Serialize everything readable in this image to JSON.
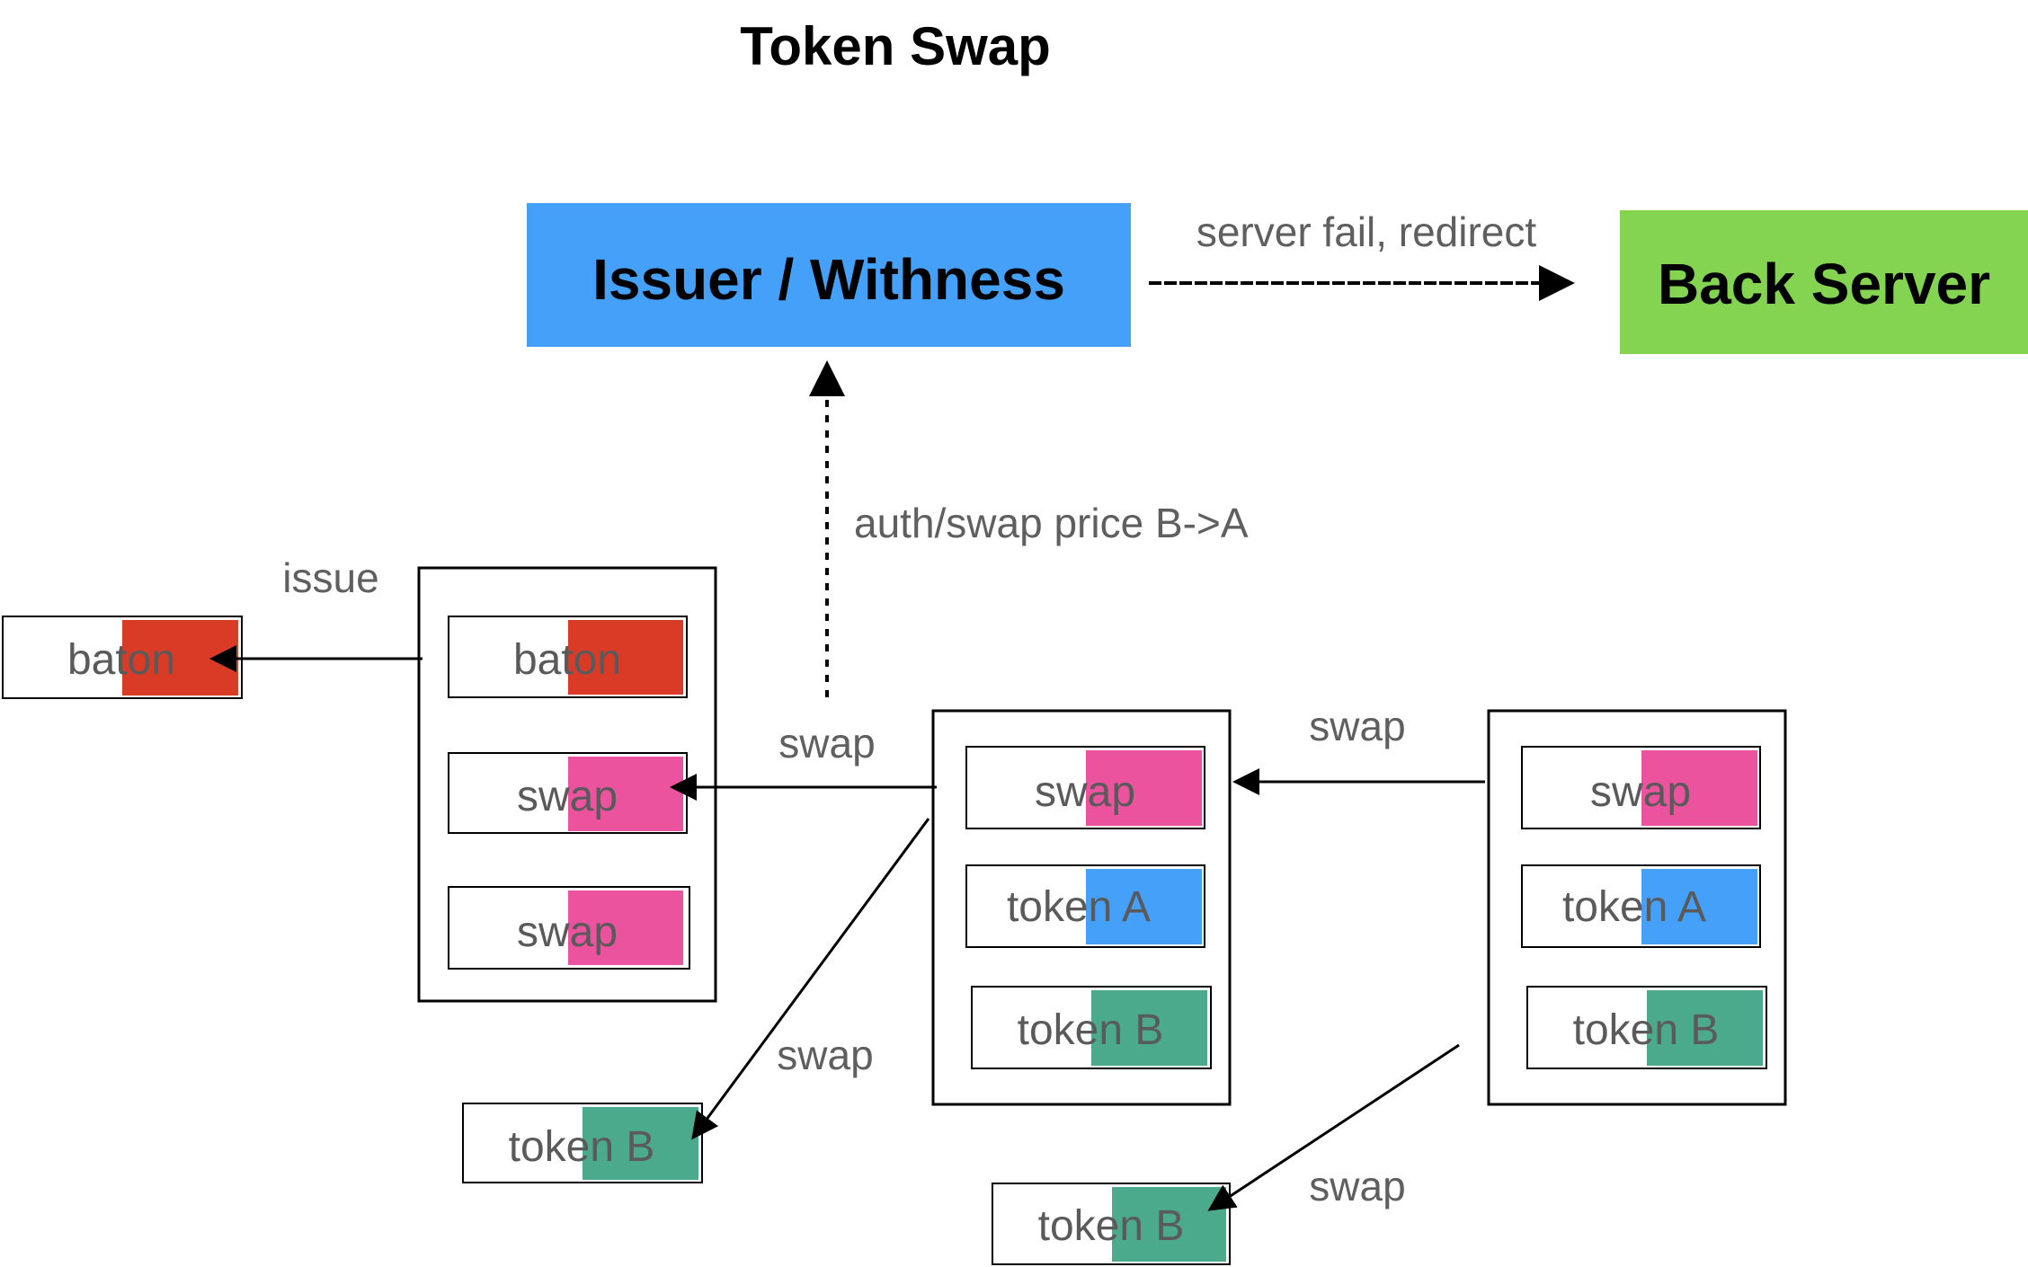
{
  "title": "Token Swap",
  "issuer": {
    "label": "Issuer / Withness",
    "color": "#45a0fa"
  },
  "back_server": {
    "label": "Back Server",
    "color": "#84d451"
  },
  "labels": {
    "server_fail": "server fail, redirect",
    "auth_swap": "auth/swap price B->A",
    "issue": "issue",
    "swap_1": "swap",
    "swap_2": "swap",
    "swap_3": "swap",
    "swap_4": "swap"
  },
  "chips": {
    "baton_out": "baton",
    "g1_baton": "baton",
    "g1_swap1": "swap",
    "g1_swap2": "swap",
    "g2_swap": "swap",
    "g2_tokenA": "token A",
    "g2_tokenB": "token B",
    "g3_swap": "swap",
    "g3_tokenA": "token A",
    "g3_tokenB": "token B",
    "tokenB_out1": "token B",
    "tokenB_out2": "token B"
  },
  "colors": {
    "baton": "#d93b27",
    "swap": "#eb539e",
    "tokenA": "#45a0fa",
    "tokenB": "#4ba98c"
  }
}
